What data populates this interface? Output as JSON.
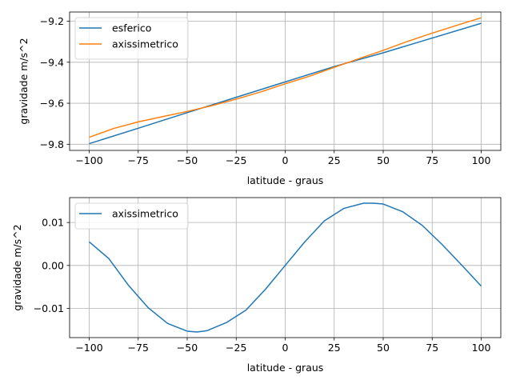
{
  "chart_data": [
    {
      "type": "line",
      "xlabel": "latitude - graus",
      "ylabel": "gravidade m/s^2",
      "xlim": [
        -110,
        110
      ],
      "ylim": [
        -9.83,
        -9.155
      ],
      "xticks": [
        -100,
        -75,
        -50,
        -25,
        0,
        25,
        50,
        75,
        100
      ],
      "xtick_labels": [
        "−100",
        "−75",
        "−50",
        "−25",
        "0",
        "25",
        "50",
        "75",
        "100"
      ],
      "yticks": [
        -9.8,
        -9.6,
        -9.4,
        -9.2
      ],
      "ytick_labels": [
        "−9.8",
        "−9.6",
        "−9.4",
        "−9.2"
      ],
      "grid": true,
      "legend": "top-left",
      "series": [
        {
          "name": "esferico",
          "color": "#1f77b4",
          "x": [
            -100,
            -75,
            -50,
            -25,
            0,
            25,
            50,
            75,
            100
          ],
          "values": [
            -9.797,
            -9.722,
            -9.646,
            -9.571,
            -9.496,
            -9.421,
            -9.354,
            -9.282,
            -9.21
          ]
        },
        {
          "name": "axissimetrico",
          "color": "#ff7f0e",
          "x": [
            -100,
            -87.5,
            -75,
            -62.5,
            -50,
            -37.5,
            -25,
            -12.5,
            0,
            12.5,
            25,
            37.5,
            50,
            62.5,
            75,
            87.5,
            100
          ],
          "values": [
            -9.766,
            -9.723,
            -9.691,
            -9.665,
            -9.64,
            -9.612,
            -9.58,
            -9.545,
            -9.505,
            -9.468,
            -9.425,
            -9.383,
            -9.342,
            -9.298,
            -9.258,
            -9.22,
            -9.183
          ]
        }
      ]
    },
    {
      "type": "line",
      "xlabel": "latitude - graus",
      "ylabel": "gravidade m/s^2",
      "xlim": [
        -110,
        110
      ],
      "ylim": [
        -0.0168,
        0.0158
      ],
      "xticks": [
        -100,
        -75,
        -50,
        -25,
        0,
        25,
        50,
        75,
        100
      ],
      "xtick_labels": [
        "−100",
        "−75",
        "−50",
        "−25",
        "0",
        "25",
        "50",
        "75",
        "100"
      ],
      "yticks": [
        -0.01,
        0.0,
        0.01
      ],
      "ytick_labels": [
        "−0.01",
        "0.00",
        "0.01"
      ],
      "grid": true,
      "legend": "top-left",
      "series": [
        {
          "name": "axissimetrico",
          "color": "#1f77b4",
          "x": [
            -100,
            -90,
            -80,
            -70,
            -60,
            -50,
            -45,
            -40,
            -30,
            -20,
            -10,
            0,
            10,
            20,
            30,
            40,
            45,
            50,
            60,
            70,
            80,
            90,
            100
          ],
          "values": [
            0.0055,
            0.0016,
            -0.0046,
            -0.0098,
            -0.0135,
            -0.0153,
            -0.0155,
            -0.0152,
            -0.0133,
            -0.0104,
            -0.0055,
            0.0,
            0.0055,
            0.0104,
            0.0133,
            0.0145,
            0.0145,
            0.0143,
            0.0125,
            0.0093,
            0.0049,
            0.0001,
            -0.0048
          ]
        }
      ]
    }
  ]
}
